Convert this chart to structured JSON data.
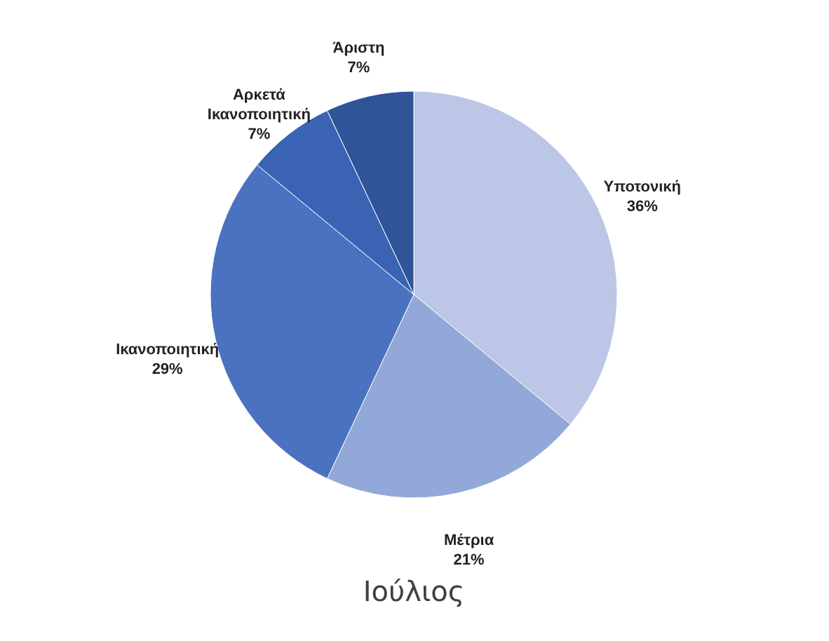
{
  "chart_data": {
    "type": "pie",
    "title": "Ιούλιος",
    "categories": [
      "Υποτονική",
      "Μέτρια",
      "Ικανοποιητική",
      "Αρκετά Ικανοποιητική",
      "Άριστη"
    ],
    "values": [
      36,
      21,
      29,
      7,
      7
    ],
    "value_labels": [
      "36%",
      "21%",
      "29%",
      "7%",
      "7%"
    ],
    "colors": [
      "#bcc6e6",
      "#91a8d8",
      "#4a72c0",
      "#3b63b3",
      "#2f5498"
    ]
  }
}
